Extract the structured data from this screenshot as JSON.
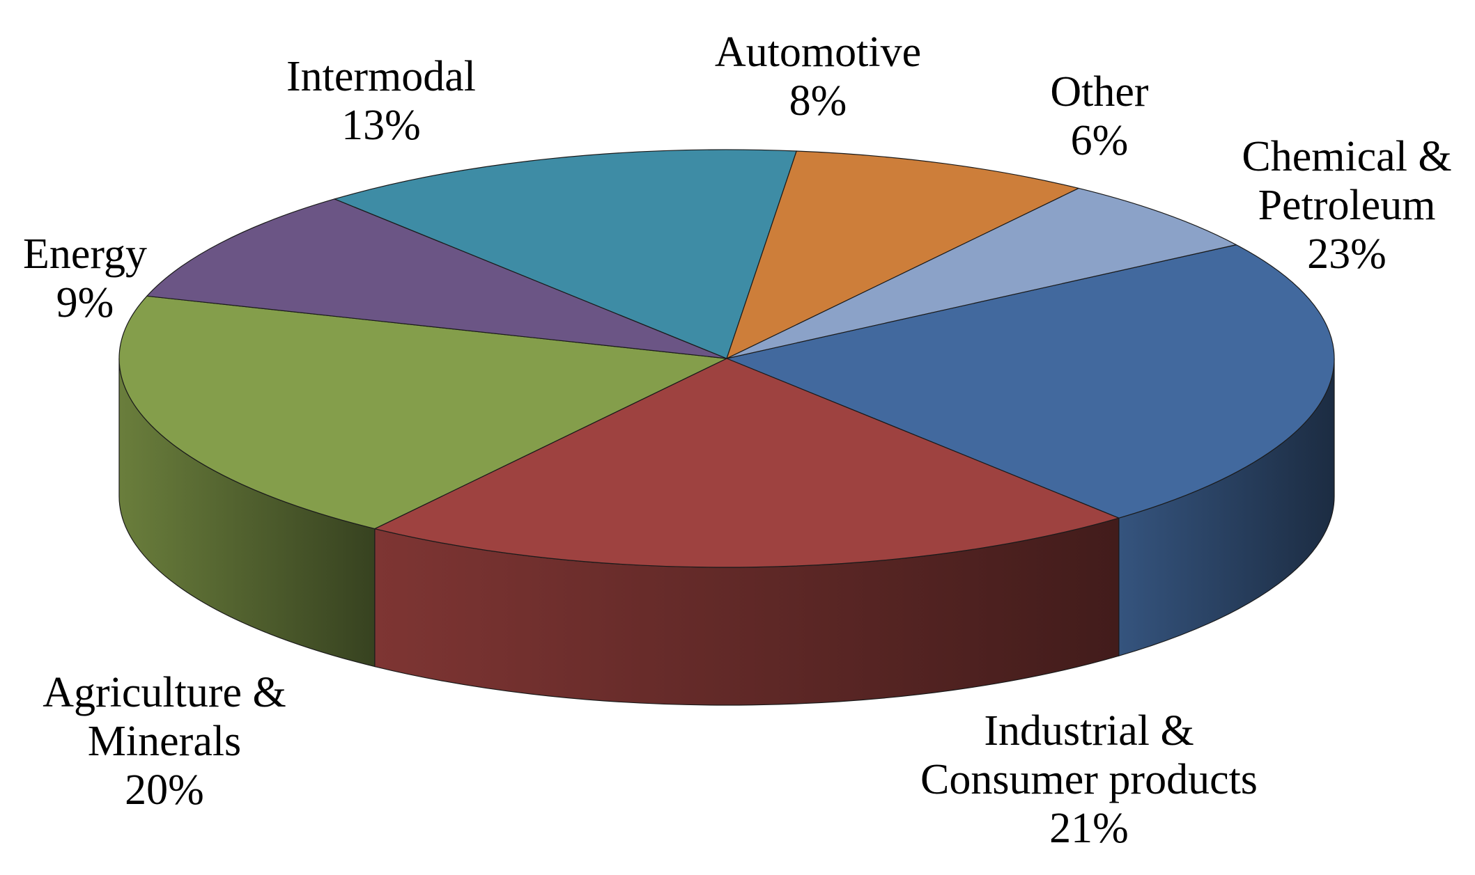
{
  "chart_data": {
    "type": "pie",
    "style": "3d",
    "title": "",
    "slices": [
      {
        "label_lines": [
          "Chemical &",
          "Petroleum"
        ],
        "value": 23,
        "value_label": "23%",
        "color": "#42699E"
      },
      {
        "label_lines": [
          "Industrial &",
          "Consumer products"
        ],
        "value": 21,
        "value_label": "21%",
        "color": "#9E4240"
      },
      {
        "label_lines": [
          "Agriculture &",
          "Minerals"
        ],
        "value": 20,
        "value_label": "20%",
        "color": "#849E4B"
      },
      {
        "label_lines": [
          "Energy"
        ],
        "value": 9,
        "value_label": "9%",
        "color": "#6B5585"
      },
      {
        "label_lines": [
          "Intermodal"
        ],
        "value": 13,
        "value_label": "13%",
        "color": "#3E8CA5"
      },
      {
        "label_lines": [
          "Automotive"
        ],
        "value": 8,
        "value_label": "8%",
        "color": "#CD7E3A"
      },
      {
        "label_lines": [
          "Other"
        ],
        "value": 6,
        "value_label": "6%",
        "color": "#8BA2C8"
      }
    ]
  }
}
